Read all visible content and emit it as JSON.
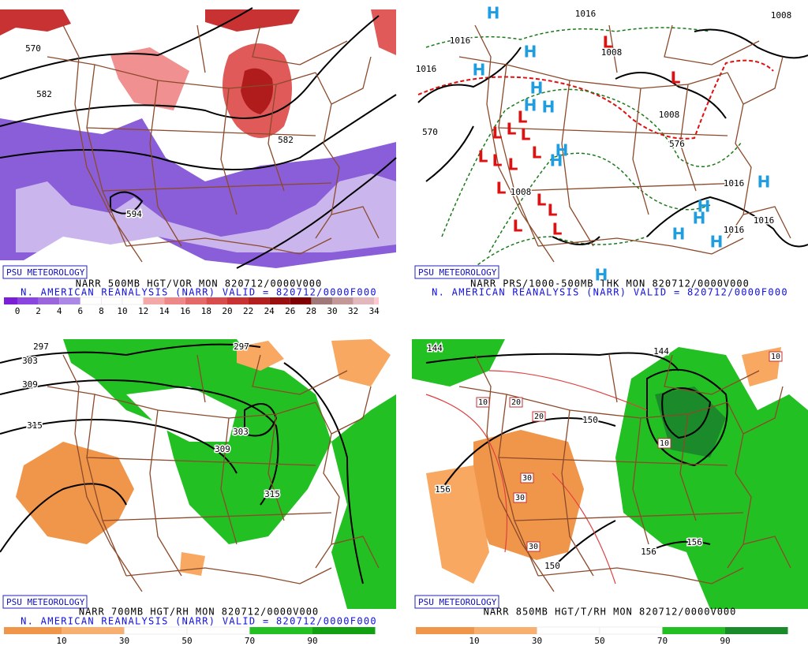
{
  "panels": [
    {
      "badge": "PSU METEOROLOGY",
      "title": "NARR 500MB HGT/VOR MON 820712/0000V000",
      "subtitle": "N. AMERICAN REANALYSIS (NARR) VALID = 820712/0000F000",
      "colorbar": {
        "ticks": [
          0,
          2,
          4,
          6,
          8,
          10,
          12,
          14,
          16,
          18,
          20,
          22,
          24,
          26,
          28,
          30,
          32,
          34
        ],
        "colors": [
          "#7a1fd6",
          "#8a44e0",
          "#9966dd",
          "#ab88e6",
          "#ffffff",
          "#ffffff",
          "#ffffff",
          "#f4a9a9",
          "#ee8888",
          "#e46a6a",
          "#d84c4c",
          "#c83232",
          "#b31e1e",
          "#9a0f0f",
          "#800000",
          "#a0787a",
          "#c49898",
          "#e2b8bc",
          "#ffc8d0"
        ]
      },
      "map_labels": [
        "570",
        "582",
        "582",
        "594"
      ]
    },
    {
      "badge": "PSU METEOROLOGY",
      "title": "NARR PRS/1000-500MB THK MON 820712/0000V000",
      "subtitle": "N. AMERICAN REANALYSIS (NARR) VALID = 820712/0000F000",
      "map_labels": [
        "1016",
        "1016",
        "1016",
        "1008",
        "1008",
        "1008",
        "570",
        "576",
        "1016",
        "1016",
        "1016",
        "1008"
      ],
      "pressure_centers": [
        {
          "text": "H",
          "color": "#1e9ee0"
        },
        {
          "text": "H",
          "color": "#1e9ee0"
        },
        {
          "text": "H",
          "color": "#1e9ee0"
        },
        {
          "text": "H",
          "color": "#1e9ee0"
        },
        {
          "text": "H",
          "color": "#1e9ee0"
        },
        {
          "text": "H",
          "color": "#1e9ee0"
        },
        {
          "text": "H",
          "color": "#1e9ee0"
        },
        {
          "text": "H",
          "color": "#1e9ee0"
        },
        {
          "text": "H",
          "color": "#1e9ee0"
        },
        {
          "text": "H",
          "color": "#1e9ee0"
        },
        {
          "text": "H",
          "color": "#1e9ee0"
        },
        {
          "text": "H",
          "color": "#1e9ee0"
        },
        {
          "text": "H",
          "color": "#1e9ee0"
        },
        {
          "text": "H",
          "color": "#1e9ee0"
        },
        {
          "text": "L",
          "color": "#e01010"
        },
        {
          "text": "L",
          "color": "#e01010"
        },
        {
          "text": "L",
          "color": "#e01010"
        },
        {
          "text": "L",
          "color": "#e01010"
        },
        {
          "text": "L",
          "color": "#e01010"
        },
        {
          "text": "L",
          "color": "#e01010"
        },
        {
          "text": "L",
          "color": "#e01010"
        },
        {
          "text": "L",
          "color": "#e01010"
        },
        {
          "text": "L",
          "color": "#e01010"
        },
        {
          "text": "L",
          "color": "#e01010"
        },
        {
          "text": "L",
          "color": "#e01010"
        },
        {
          "text": "L",
          "color": "#e01010"
        },
        {
          "text": "L",
          "color": "#e01010"
        },
        {
          "text": "L",
          "color": "#e01010"
        },
        {
          "text": "L",
          "color": "#e01010"
        }
      ]
    },
    {
      "badge": "PSU METEOROLOGY",
      "title": "NARR 700MB HGT/RH MON 820712/0000V000",
      "subtitle": "N. AMERICAN REANALYSIS (NARR) VALID = 820712/0000F000",
      "colorbar": {
        "ticks": [
          10,
          30,
          50,
          70,
          90
        ],
        "colors": [
          "#f0964a",
          "#f8b070",
          "#ffffff",
          "#ffffff",
          "#22c022",
          "#11a011"
        ]
      },
      "map_labels": [
        "297",
        "303",
        "309",
        "315",
        "297",
        "303",
        "309",
        "315"
      ]
    },
    {
      "badge": "PSU METEOROLOGY",
      "title": "NARR 850MB HGT/T/RH MON 820712/0000V000",
      "colorbar": {
        "ticks": [
          10,
          30,
          50,
          70,
          90
        ],
        "colors": [
          "#f0964a",
          "#f8b070",
          "#ffffff",
          "#ffffff",
          "#22c022",
          "#1a8a2a"
        ]
      },
      "map_labels": [
        "144",
        "144",
        "150",
        "156",
        "150",
        "156",
        "156"
      ],
      "boxed_labels": [
        "10",
        "20",
        "20",
        "10",
        "30",
        "30",
        "30",
        "10"
      ]
    }
  ]
}
